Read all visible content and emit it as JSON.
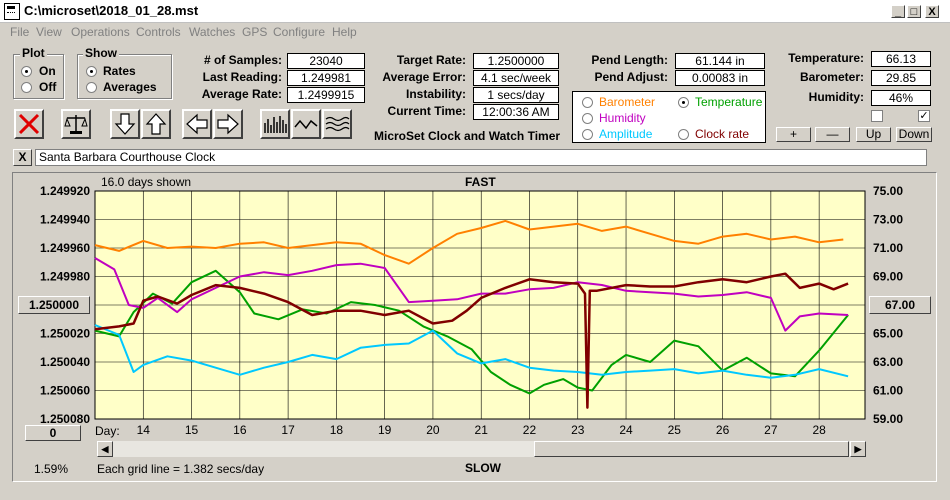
{
  "window": {
    "title": "C:\\microset\\2018_01_28.mst",
    "controls": [
      "_",
      "□",
      "X"
    ]
  },
  "menu": [
    "File",
    "View",
    "Operations",
    "Controls",
    "Watches",
    "GPS",
    "Configure",
    "Help"
  ],
  "plot_group": {
    "title": "Plot",
    "options": [
      {
        "label": "On",
        "selected": true
      },
      {
        "label": "Off",
        "selected": false
      }
    ]
  },
  "show_group": {
    "title": "Show",
    "options": [
      {
        "label": "Rates",
        "selected": true
      },
      {
        "label": "Averages",
        "selected": false
      }
    ]
  },
  "stats": {
    "samples_label": "# of Samples:",
    "samples": "23040",
    "last_reading_label": "Last Reading:",
    "last_reading": "1.249981",
    "average_rate_label": "Average Rate:",
    "average_rate": "1.2499915",
    "target_rate_label": "Target Rate:",
    "target_rate": "1.2500000",
    "average_error_label": "Average Error:",
    "average_error": "4.1 sec/week",
    "instability_label": "Instability:",
    "instability": "1 secs/day",
    "current_time_label": "Current Time:",
    "current_time": "12:00:36 AM",
    "pend_length_label": "Pend Length:",
    "pend_length": "61.144 in",
    "pend_adjust_label": "Pend Adjust:",
    "pend_adjust": "0.00083 in",
    "temperature_label": "Temperature:",
    "temperature": "66.13",
    "barometer_label": "Barometer:",
    "barometer": "29.85",
    "humidity_label": "Humidity:",
    "humidity": "46%"
  },
  "app_label": "MicroSet Clock and Watch Timer",
  "legend": [
    {
      "label": "Barometer",
      "color": "#ff8000",
      "selected": false
    },
    {
      "label": "Temperature",
      "color": "#00a000",
      "selected": true
    },
    {
      "label": "Humidity",
      "color": "#c000c0",
      "selected": false
    },
    {
      "label": "Amplitude",
      "color": "#00c8ff",
      "selected": false
    },
    {
      "label": "Clock rate",
      "color": "#800000",
      "selected": false
    }
  ],
  "scale_buttons": [
    "+",
    "—",
    "Up",
    "Down"
  ],
  "checkboxes": [
    {
      "checked": false
    },
    {
      "checked": true
    }
  ],
  "toolbar_icons": [
    "clear-icon",
    "balance-icon",
    "arrow-down-icon",
    "arrow-up-icon",
    "arrow-left-icon",
    "arrow-right-icon",
    "bars-icon",
    "wave-icon",
    "multiwave-icon"
  ],
  "clock_name": "Santa Barbara Courthouse Clock",
  "close_label": "X",
  "graph": {
    "days_shown": "16.0 days shown",
    "top_label": "FAST",
    "bottom_label": "SLOW",
    "grid_note": "Each grid line = 1.382 secs/day",
    "percent": "1.59%",
    "left_button": "1.250000",
    "right_button": "67.00",
    "bottom_left_button": "0",
    "day_prefix": "Day:"
  },
  "chart_data": {
    "type": "line",
    "x_unit": "day",
    "xlim": [
      13.0,
      28.95
    ],
    "x_ticks": [
      14,
      15,
      16,
      17,
      18,
      19,
      20,
      21,
      22,
      23,
      24,
      25,
      26,
      27,
      28
    ],
    "y_left": {
      "ticks": [
        "1.249920",
        "1.249940",
        "1.249960",
        "1.249980",
        "1.250000",
        "1.250020",
        "1.250040",
        "1.250060",
        "1.250080"
      ],
      "range": [
        1.25008,
        1.24992
      ]
    },
    "y_right": {
      "ticks": [
        "75.00",
        "73.00",
        "71.00",
        "69.00",
        "67.00",
        "65.00",
        "63.00",
        "61.00",
        "59.00"
      ],
      "range": [
        59,
        75
      ]
    },
    "grid": true,
    "series": [
      {
        "name": "Barometer",
        "color": "#ff8000",
        "axis": "right",
        "x": [
          13.0,
          13.5,
          14.0,
          14.5,
          15.0,
          15.5,
          16.0,
          16.5,
          17.0,
          17.5,
          18.0,
          18.5,
          19.0,
          19.5,
          20.0,
          20.5,
          21.0,
          21.5,
          22.0,
          22.5,
          23.0,
          23.5,
          24.0,
          24.5,
          25.0,
          25.5,
          26.0,
          26.5,
          27.0,
          27.5,
          28.0,
          28.5
        ],
        "y": [
          71.2,
          70.8,
          71.5,
          71.0,
          71.1,
          71.0,
          71.3,
          71.4,
          71.0,
          71.2,
          71.4,
          71.3,
          70.5,
          69.9,
          71.0,
          72.0,
          72.4,
          72.9,
          72.3,
          72.5,
          72.7,
          72.2,
          72.5,
          72.0,
          71.5,
          71.3,
          71.8,
          72.0,
          71.6,
          71.8,
          71.4,
          71.6
        ]
      },
      {
        "name": "Temperature",
        "color": "#00a000",
        "axis": "right",
        "x": [
          13.0,
          13.5,
          13.8,
          14.2,
          14.6,
          15.0,
          15.5,
          16.0,
          16.3,
          16.8,
          17.3,
          17.8,
          18.3,
          18.8,
          19.3,
          19.8,
          20.3,
          20.8,
          21.2,
          21.6,
          22.0,
          22.3,
          22.7,
          23.0,
          23.3,
          23.7,
          24.0,
          24.5,
          25.0,
          25.5,
          26.0,
          26.5,
          27.0,
          27.5,
          28.0,
          28.6
        ],
        "y": [
          65.2,
          64.8,
          66.5,
          67.8,
          67.1,
          68.6,
          69.4,
          67.9,
          66.4,
          66.0,
          66.7,
          66.4,
          67.2,
          67.0,
          66.6,
          65.5,
          64.8,
          63.9,
          62.3,
          61.4,
          60.8,
          61.4,
          61.8,
          61.2,
          61.0,
          62.8,
          63.5,
          63.0,
          64.5,
          64.1,
          62.4,
          63.3,
          62.2,
          62.0,
          63.8,
          66.3
        ]
      },
      {
        "name": "Humidity",
        "color": "#c000c0",
        "axis": "right",
        "x": [
          13.0,
          13.4,
          13.7,
          14.0,
          14.3,
          14.7,
          15.0,
          15.5,
          16.0,
          16.5,
          17.0,
          17.5,
          18.0,
          18.5,
          19.0,
          19.5,
          20.0,
          20.5,
          21.0,
          21.5,
          22.0,
          22.5,
          23.0,
          23.5,
          24.0,
          24.5,
          25.0,
          25.5,
          26.0,
          26.5,
          27.0,
          27.3,
          27.6,
          28.0,
          28.6
        ],
        "y": [
          70.3,
          69.5,
          67.0,
          66.8,
          67.5,
          66.5,
          67.4,
          68.2,
          69.0,
          69.3,
          69.1,
          69.4,
          69.8,
          69.9,
          69.6,
          67.2,
          67.3,
          67.4,
          67.8,
          67.8,
          68.1,
          68.2,
          68.6,
          68.4,
          68.0,
          67.9,
          67.8,
          67.6,
          67.7,
          67.9,
          67.5,
          65.2,
          66.2,
          66.4,
          66.3
        ]
      },
      {
        "name": "Amplitude",
        "color": "#00c8ff",
        "axis": "right",
        "x": [
          13.0,
          13.5,
          13.8,
          14.0,
          14.5,
          15.0,
          15.5,
          16.0,
          16.5,
          17.0,
          17.5,
          18.0,
          18.5,
          19.0,
          19.5,
          20.0,
          20.5,
          21.0,
          21.5,
          22.0,
          22.5,
          23.0,
          23.5,
          24.0,
          24.5,
          25.0,
          25.5,
          26.0,
          26.5,
          27.0,
          27.5,
          28.0,
          28.6
        ],
        "y": [
          65.6,
          64.9,
          62.3,
          62.8,
          63.4,
          63.1,
          62.6,
          62.1,
          62.6,
          63.0,
          63.5,
          63.2,
          64.0,
          64.2,
          64.3,
          65.2,
          63.6,
          62.9,
          63.2,
          62.6,
          62.4,
          62.3,
          62.1,
          62.3,
          62.4,
          62.5,
          62.2,
          62.4,
          62.1,
          61.9,
          62.1,
          62.5,
          62.0
        ]
      },
      {
        "name": "Clock rate",
        "color": "#800000",
        "axis": "left",
        "x": [
          13.0,
          13.5,
          13.8,
          14.0,
          14.3,
          14.7,
          15.0,
          15.5,
          16.0,
          16.5,
          17.0,
          17.5,
          18.0,
          18.5,
          19.0,
          19.5,
          20.0,
          20.4,
          20.7,
          21.0,
          21.5,
          22.0,
          22.5,
          23.0,
          23.15,
          23.2,
          23.25,
          23.4,
          24.0,
          24.5,
          25.0,
          25.5,
          26.0,
          26.5,
          27.0,
          27.3,
          27.6,
          28.0,
          28.3,
          28.6
        ],
        "y": [
          1.250017,
          1.250015,
          1.250013,
          1.249997,
          1.249994,
          1.249999,
          1.249993,
          1.249986,
          1.249988,
          1.249992,
          1.249998,
          1.250007,
          1.250004,
          1.250004,
          1.250007,
          1.250004,
          1.250013,
          1.250011,
          1.250004,
          1.249995,
          1.249988,
          1.249982,
          1.249984,
          1.249985,
          1.249992,
          1.250072,
          1.24999,
          1.24999,
          1.249986,
          1.249987,
          1.249987,
          1.249984,
          1.249982,
          1.249984,
          1.24998,
          1.249978,
          1.249988,
          1.249985,
          1.249989,
          1.249985
        ]
      }
    ]
  }
}
